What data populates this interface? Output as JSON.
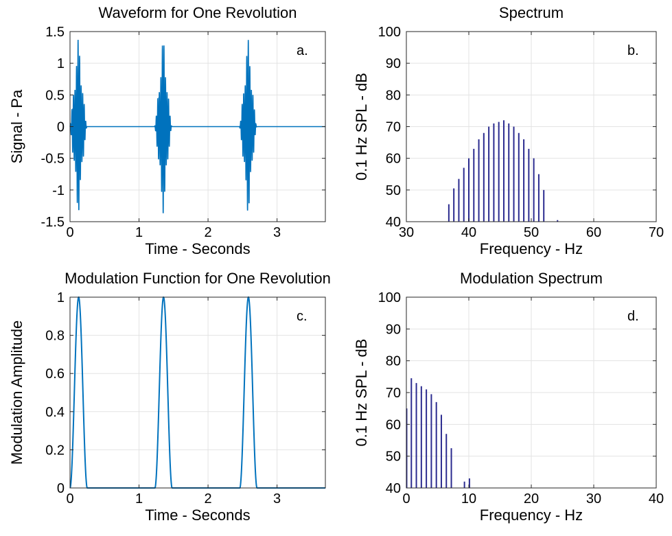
{
  "chart_data": [
    {
      "id": "a",
      "type": "line",
      "title": "Waveform for One Revolution",
      "xlabel": "Time - Seconds",
      "ylabel": "Signal - Pa",
      "corner_label": "a.",
      "xlim": [
        0,
        3.7
      ],
      "ylim": [
        -1.5,
        1.5
      ],
      "xticks": [
        0,
        1,
        2,
        3
      ],
      "yticks": [
        -1.5,
        -1,
        -0.5,
        0,
        0.5,
        1,
        1.5
      ],
      "grid": true,
      "color": "#0072BD",
      "series": [
        {
          "bursts": [
            {
              "center": 0.12,
              "halfwidth": 0.13,
              "amplitude": 1.38
            },
            {
              "center": 1.35,
              "halfwidth": 0.13,
              "amplitude": 1.38
            },
            {
              "center": 2.58,
              "halfwidth": 0.13,
              "amplitude": 1.38
            }
          ],
          "carrier_hz": 45
        }
      ]
    },
    {
      "id": "b",
      "type": "bar",
      "title": "Spectrum",
      "xlabel": "Frequency - Hz",
      "ylabel": "0.1 Hz SPL - dB",
      "corner_label": "b.",
      "xlim": [
        30,
        70
      ],
      "ylim": [
        40,
        100
      ],
      "xticks": [
        30,
        40,
        50,
        60,
        70
      ],
      "yticks": [
        40,
        50,
        60,
        70,
        80,
        90,
        100
      ],
      "grid": true,
      "color": "#2B2B8F",
      "x": [
        36.8,
        37.6,
        38.4,
        39.2,
        40.0,
        40.8,
        41.6,
        42.4,
        43.2,
        44.0,
        44.8,
        45.6,
        46.4,
        47.2,
        48.0,
        48.8,
        49.6,
        50.4,
        51.2,
        52.0,
        54.2
      ],
      "values": [
        45.5,
        50.5,
        53.5,
        57,
        60,
        63,
        66,
        68,
        70,
        71,
        71.5,
        72,
        71,
        70,
        68,
        66,
        63,
        60,
        55,
        50,
        40.5
      ]
    },
    {
      "id": "c",
      "type": "line",
      "title": "Modulation Function for One Revolution",
      "xlabel": "Time - Seconds",
      "ylabel": "Modulation Amplitude",
      "corner_label": "c.",
      "xlim": [
        0,
        3.7
      ],
      "ylim": [
        0,
        1
      ],
      "xticks": [
        0,
        1,
        2,
        3
      ],
      "yticks": [
        0,
        0.2,
        0.4,
        0.6,
        0.8,
        1
      ],
      "grid": true,
      "color": "#0072BD",
      "series": [
        {
          "pulses": [
            {
              "start": 0.0,
              "end": 0.25
            },
            {
              "start": 1.23,
              "end": 1.48
            },
            {
              "start": 2.46,
              "end": 2.71
            }
          ]
        }
      ]
    },
    {
      "id": "d",
      "type": "bar",
      "title": "Modulation Spectrum",
      "xlabel": "Frequency - Hz",
      "ylabel": "0.1 Hz SPL - dB",
      "corner_label": "d.",
      "xlim": [
        0,
        40
      ],
      "ylim": [
        40,
        100
      ],
      "xticks": [
        0,
        10,
        20,
        30,
        40
      ],
      "yticks": [
        40,
        50,
        60,
        70,
        80,
        90,
        100
      ],
      "grid": true,
      "color": "#2B2B8F",
      "x": [
        0.05,
        0.8,
        1.6,
        2.4,
        3.2,
        4.0,
        4.8,
        5.6,
        6.4,
        7.2,
        9.3,
        10.1
      ],
      "values": [
        65,
        74.5,
        73,
        72,
        71,
        69.5,
        67,
        63,
        57,
        52.5,
        42,
        43
      ]
    }
  ]
}
